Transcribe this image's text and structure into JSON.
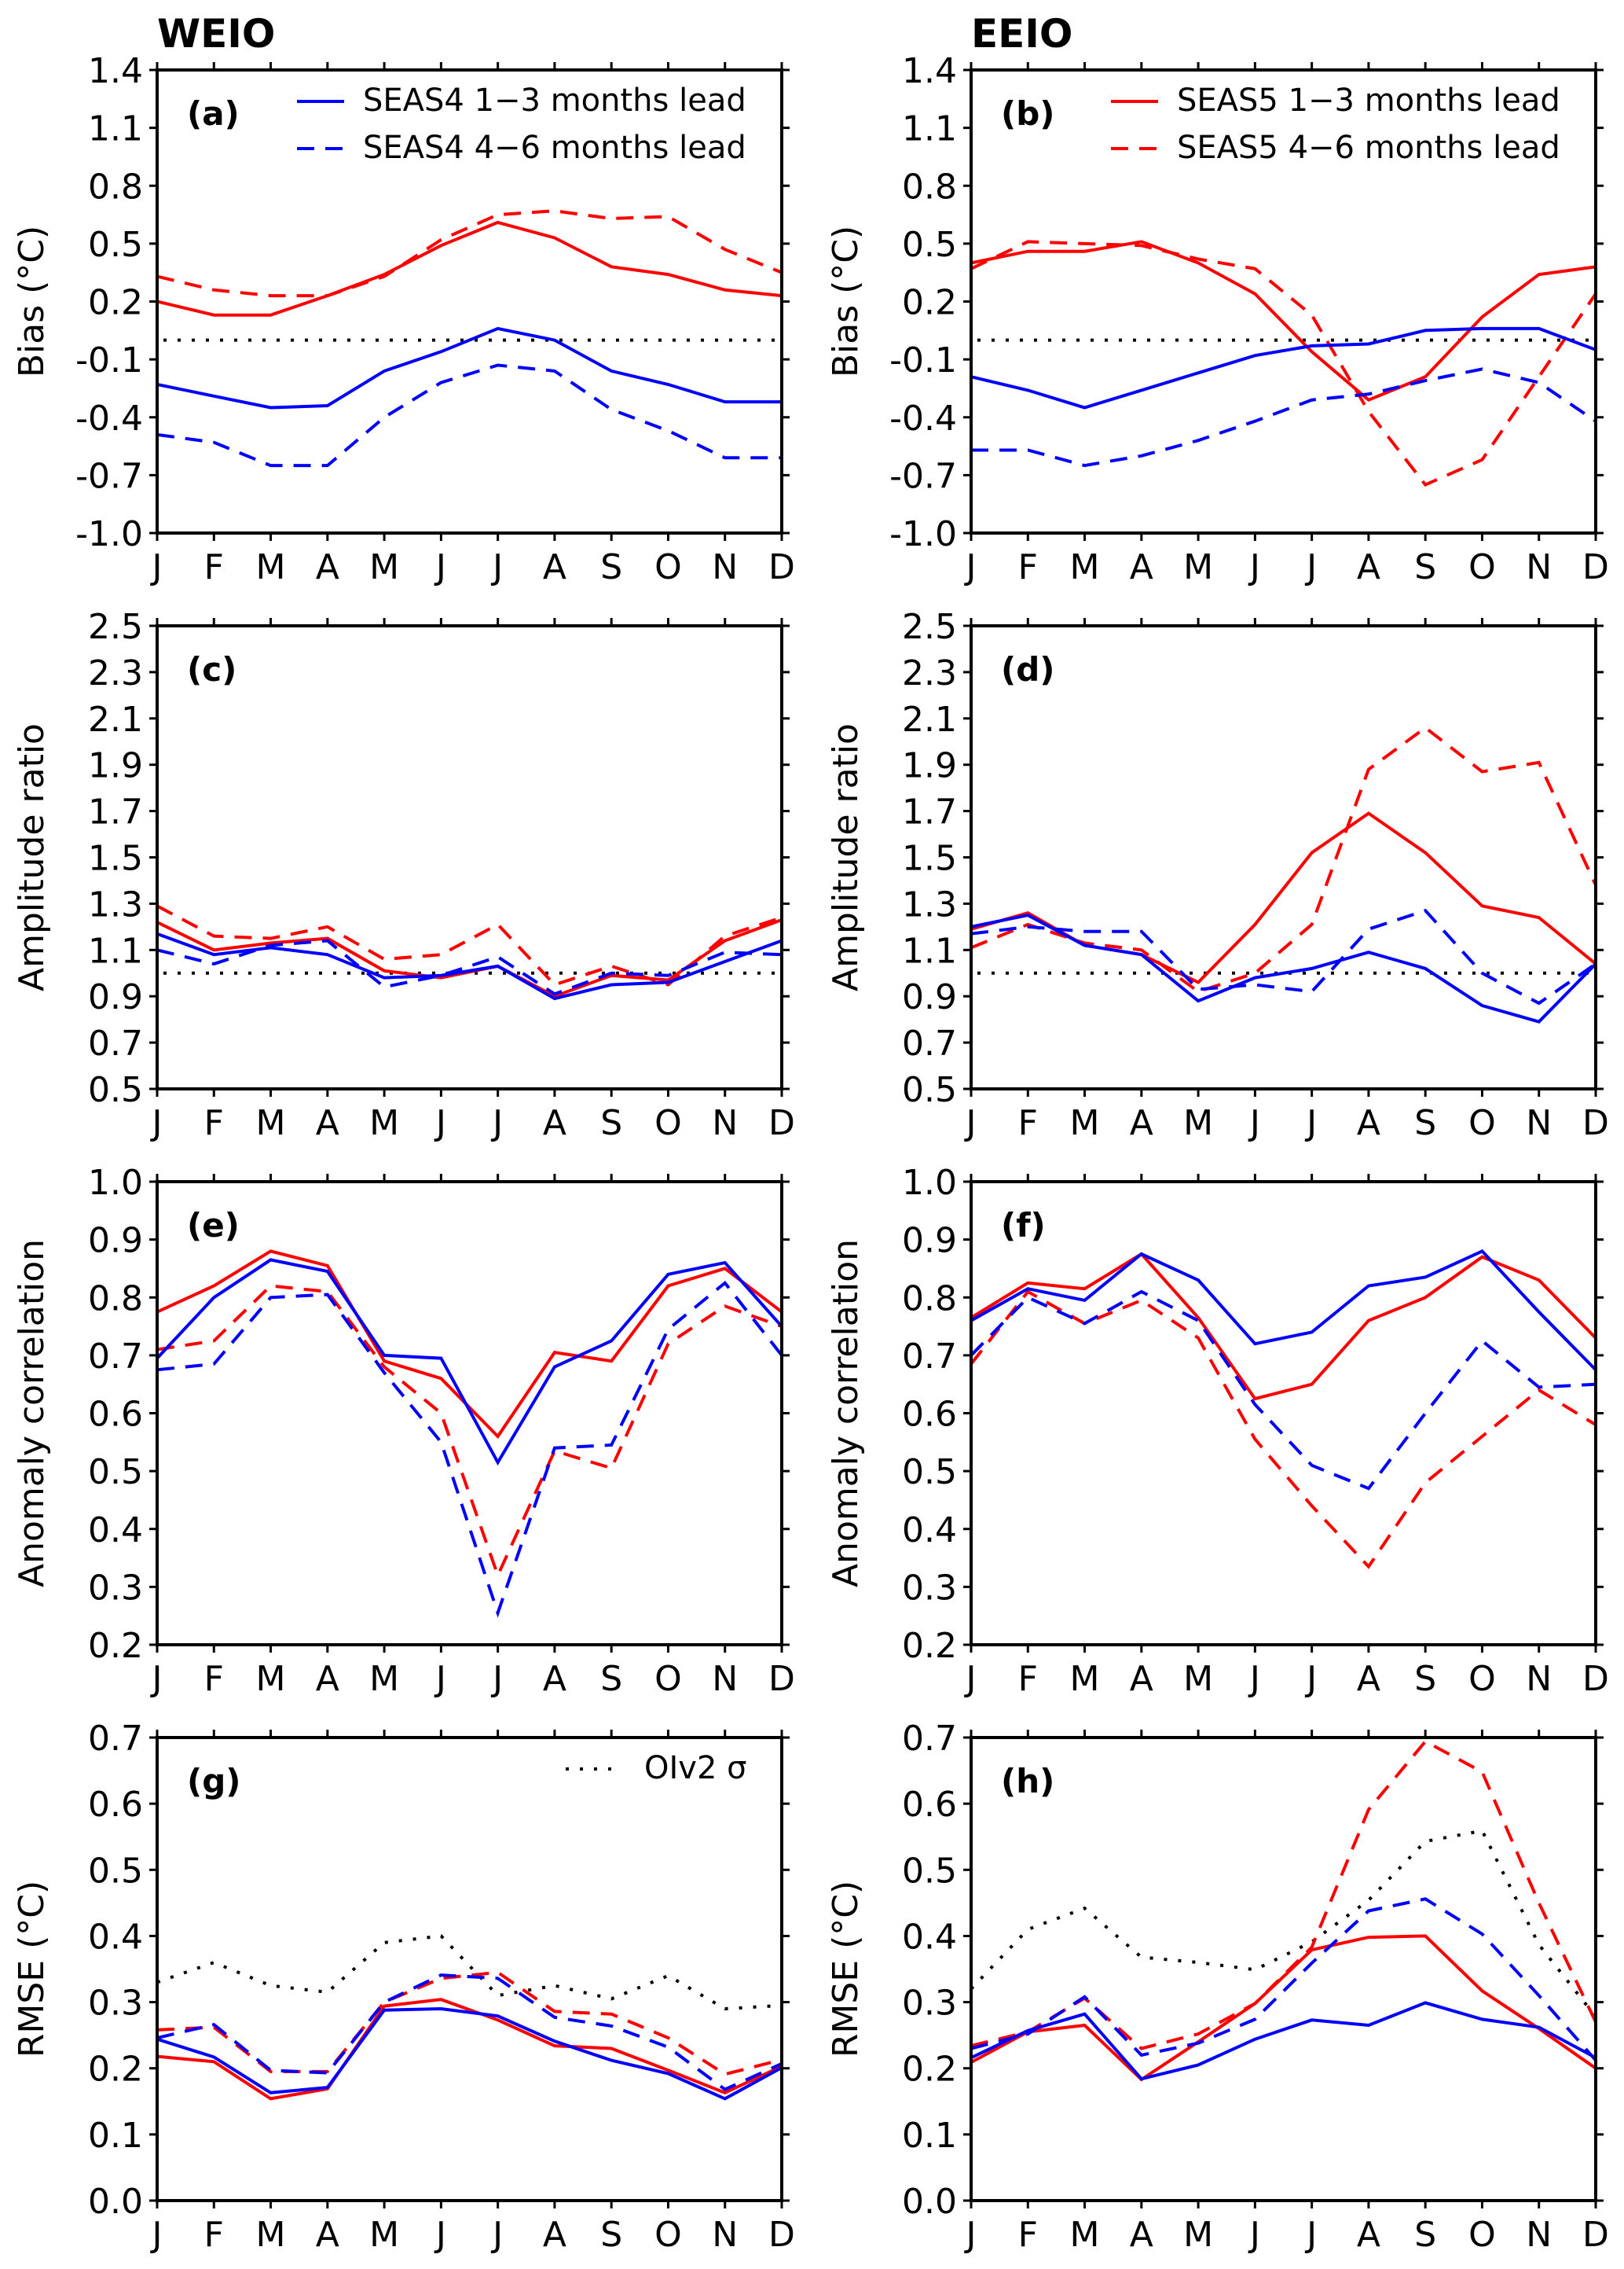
{
  "chart_data": {
    "type": "line",
    "columns": [
      "WEIO",
      "EEIO"
    ],
    "months": [
      "J",
      "F",
      "M",
      "A",
      "M",
      "J",
      "J",
      "A",
      "S",
      "O",
      "N",
      "D"
    ],
    "legend": {
      "seas4_solid": "SEAS4 1−3 months lead",
      "seas4_dashed": "SEAS4 4−6 months lead",
      "seas5_solid": "SEAS5 1−3 months lead",
      "seas5_dashed": "SEAS5 4−6 months lead",
      "obs_dotted": "OIv2 σ"
    },
    "colors": {
      "seas4": "#0000ff",
      "seas5": "#ff0000",
      "obs": "#000000"
    },
    "panels": [
      {
        "id": "a",
        "label": "(a)",
        "column": "WEIO",
        "ylabel": "Bias (°C)",
        "ylim": [
          -1.0,
          1.4
        ],
        "yticks": [
          "1.4",
          "1.1",
          "0.8",
          "0.5",
          "0.2",
          "-0.1",
          "-0.4",
          "-0.7",
          "-1.0"
        ],
        "reference_line": 0.0,
        "legend_entries": [
          "seas4_solid",
          "seas4_dashed"
        ],
        "series": [
          {
            "name": "SEAS5 1-3 months lead",
            "style": "solid",
            "color": "seas5",
            "values": [
              0.2,
              0.13,
              0.13,
              0.23,
              0.34,
              0.49,
              0.61,
              0.53,
              0.38,
              0.34,
              0.26,
              0.23
            ]
          },
          {
            "name": "SEAS5 4-6 months lead",
            "style": "dashed",
            "color": "seas5",
            "values": [
              0.33,
              0.26,
              0.23,
              0.23,
              0.33,
              0.52,
              0.65,
              0.67,
              0.63,
              0.64,
              0.47,
              0.35
            ]
          },
          {
            "name": "SEAS4 1-3 months lead",
            "style": "solid",
            "color": "seas4",
            "values": [
              -0.23,
              -0.29,
              -0.35,
              -0.34,
              -0.16,
              -0.06,
              0.06,
              0.0,
              -0.16,
              -0.23,
              -0.32,
              -0.32
            ]
          },
          {
            "name": "SEAS4 4-6 months lead",
            "style": "dashed",
            "color": "seas4",
            "values": [
              -0.49,
              -0.53,
              -0.65,
              -0.65,
              -0.4,
              -0.22,
              -0.13,
              -0.16,
              -0.36,
              -0.47,
              -0.61,
              -0.61
            ]
          }
        ]
      },
      {
        "id": "b",
        "label": "(b)",
        "column": "EEIO",
        "ylabel": "Bias (°C)",
        "ylim": [
          -1.0,
          1.4
        ],
        "yticks": [
          "1.4",
          "1.1",
          "0.8",
          "0.5",
          "0.2",
          "-0.1",
          "-0.4",
          "-0.7",
          "-1.0"
        ],
        "reference_line": 0.0,
        "legend_entries": [
          "seas5_solid",
          "seas5_dashed"
        ],
        "series": [
          {
            "name": "SEAS5 1-3 months lead",
            "style": "solid",
            "color": "seas5",
            "values": [
              0.4,
              0.46,
              0.46,
              0.51,
              0.4,
              0.24,
              -0.06,
              -0.31,
              -0.19,
              0.12,
              0.34,
              0.38
            ]
          },
          {
            "name": "SEAS5 4-6 months lead",
            "style": "dashed",
            "color": "seas5",
            "values": [
              0.37,
              0.51,
              0.5,
              0.49,
              0.42,
              0.37,
              0.13,
              -0.37,
              -0.75,
              -0.62,
              -0.19,
              0.24
            ]
          },
          {
            "name": "SEAS4 1-3 months lead",
            "style": "solid",
            "color": "seas4",
            "values": [
              -0.19,
              -0.26,
              -0.35,
              -0.26,
              -0.17,
              -0.08,
              -0.03,
              -0.02,
              0.05,
              0.06,
              0.06,
              -0.05
            ]
          },
          {
            "name": "SEAS4 4-6 months lead",
            "style": "dashed",
            "color": "seas4",
            "values": [
              -0.57,
              -0.57,
              -0.65,
              -0.6,
              -0.52,
              -0.42,
              -0.31,
              -0.28,
              -0.21,
              -0.15,
              -0.22,
              -0.42
            ]
          }
        ]
      },
      {
        "id": "c",
        "label": "(c)",
        "column": "WEIO",
        "ylabel": "Amplitude ratio",
        "ylim": [
          0.5,
          2.5
        ],
        "yticks": [
          "2.5",
          "2.3",
          "2.1",
          "1.9",
          "1.7",
          "1.5",
          "1.3",
          "1.1",
          "0.9",
          "0.7",
          "0.5"
        ],
        "reference_line": 1.0,
        "legend_entries": [],
        "series": [
          {
            "name": "SEAS5 1-3 months lead",
            "style": "solid",
            "color": "seas5",
            "values": [
              1.22,
              1.1,
              1.13,
              1.15,
              1.01,
              0.98,
              1.03,
              0.9,
              0.99,
              0.97,
              1.14,
              1.23
            ]
          },
          {
            "name": "SEAS5 4-6 months lead",
            "style": "dashed",
            "color": "seas5",
            "values": [
              1.29,
              1.16,
              1.15,
              1.2,
              1.06,
              1.08,
              1.21,
              0.95,
              1.03,
              0.95,
              1.16,
              1.24
            ]
          },
          {
            "name": "SEAS4 1-3 months lead",
            "style": "solid",
            "color": "seas4",
            "values": [
              1.17,
              1.08,
              1.11,
              1.08,
              0.98,
              0.99,
              1.03,
              0.89,
              0.95,
              0.96,
              1.05,
              1.14
            ]
          },
          {
            "name": "SEAS4 4-6 months lead",
            "style": "dashed",
            "color": "seas4",
            "values": [
              1.1,
              1.04,
              1.12,
              1.14,
              0.94,
              0.99,
              1.07,
              0.91,
              1.0,
              0.99,
              1.09,
              1.08
            ]
          }
        ]
      },
      {
        "id": "d",
        "label": "(d)",
        "column": "EEIO",
        "ylabel": "Amplitude ratio",
        "ylim": [
          0.5,
          2.5
        ],
        "yticks": [
          "2.5",
          "2.3",
          "2.1",
          "1.9",
          "1.7",
          "1.5",
          "1.3",
          "1.1",
          "0.9",
          "0.7",
          "0.5"
        ],
        "reference_line": 1.0,
        "legend_entries": [],
        "series": [
          {
            "name": "SEAS5 1-3 months lead",
            "style": "solid",
            "color": "seas5",
            "values": [
              1.19,
              1.26,
              1.12,
              1.08,
              0.96,
              1.21,
              1.52,
              1.69,
              1.52,
              1.29,
              1.24,
              1.04
            ]
          },
          {
            "name": "SEAS5 4-6 months lead",
            "style": "dashed",
            "color": "seas5",
            "values": [
              1.11,
              1.21,
              1.13,
              1.1,
              0.92,
              1.0,
              1.21,
              1.88,
              2.06,
              1.87,
              1.91,
              1.38
            ]
          },
          {
            "name": "SEAS4 1-3 months lead",
            "style": "solid",
            "color": "seas4",
            "values": [
              1.2,
              1.25,
              1.12,
              1.08,
              0.88,
              0.98,
              1.02,
              1.09,
              1.02,
              0.86,
              0.79,
              1.04
            ]
          },
          {
            "name": "SEAS4 4-6 months lead",
            "style": "dashed",
            "color": "seas4",
            "values": [
              1.17,
              1.2,
              1.18,
              1.18,
              0.93,
              0.95,
              0.92,
              1.19,
              1.27,
              1.0,
              0.87,
              1.04
            ]
          }
        ]
      },
      {
        "id": "e",
        "label": "(e)",
        "column": "WEIO",
        "ylabel": "Anomaly correlation",
        "ylim": [
          0.2,
          1.0
        ],
        "yticks": [
          "1.0",
          "0.9",
          "0.8",
          "0.7",
          "0.6",
          "0.5",
          "0.4",
          "0.3",
          "0.2"
        ],
        "reference_line": null,
        "legend_entries": [],
        "series": [
          {
            "name": "SEAS5 1-3 months lead",
            "style": "solid",
            "color": "seas5",
            "values": [
              0.775,
              0.82,
              0.88,
              0.855,
              0.69,
              0.66,
              0.56,
              0.705,
              0.69,
              0.82,
              0.85,
              0.775
            ]
          },
          {
            "name": "SEAS5 4-6 months lead",
            "style": "dashed",
            "color": "seas5",
            "values": [
              0.71,
              0.725,
              0.82,
              0.81,
              0.68,
              0.6,
              0.32,
              0.535,
              0.505,
              0.72,
              0.785,
              0.75
            ]
          },
          {
            "name": "SEAS4 1-3 months lead",
            "style": "solid",
            "color": "seas4",
            "values": [
              0.695,
              0.8,
              0.865,
              0.845,
              0.7,
              0.695,
              0.515,
              0.68,
              0.725,
              0.84,
              0.86,
              0.75
            ]
          },
          {
            "name": "SEAS4 4-6 months lead",
            "style": "dashed",
            "color": "seas4",
            "values": [
              0.675,
              0.685,
              0.8,
              0.805,
              0.67,
              0.55,
              0.255,
              0.54,
              0.545,
              0.745,
              0.825,
              0.7
            ]
          }
        ]
      },
      {
        "id": "f",
        "label": "(f)",
        "column": "EEIO",
        "ylabel": "Anomaly correlation",
        "ylim": [
          0.2,
          1.0
        ],
        "yticks": [
          "1.0",
          "0.9",
          "0.8",
          "0.7",
          "0.6",
          "0.5",
          "0.4",
          "0.3",
          "0.2"
        ],
        "reference_line": null,
        "legend_entries": [],
        "series": [
          {
            "name": "SEAS5 1-3 months lead",
            "style": "solid",
            "color": "seas5",
            "values": [
              0.765,
              0.825,
              0.815,
              0.875,
              0.765,
              0.625,
              0.65,
              0.76,
              0.8,
              0.87,
              0.83,
              0.73
            ]
          },
          {
            "name": "SEAS5 4-6 months lead",
            "style": "dashed",
            "color": "seas5",
            "values": [
              0.685,
              0.81,
              0.755,
              0.795,
              0.73,
              0.555,
              0.44,
              0.335,
              0.48,
              0.56,
              0.64,
              0.58
            ]
          },
          {
            "name": "SEAS4 1-3 months lead",
            "style": "solid",
            "color": "seas4",
            "values": [
              0.76,
              0.815,
              0.795,
              0.875,
              0.83,
              0.72,
              0.74,
              0.82,
              0.835,
              0.88,
              0.775,
              0.675
            ]
          },
          {
            "name": "SEAS4 4-6 months lead",
            "style": "dashed",
            "color": "seas4",
            "values": [
              0.7,
              0.8,
              0.755,
              0.81,
              0.76,
              0.615,
              0.51,
              0.47,
              0.6,
              0.725,
              0.645,
              0.65
            ]
          }
        ]
      },
      {
        "id": "g",
        "label": "(g)",
        "column": "WEIO",
        "ylabel": "RMSE (°C)",
        "ylim": [
          0.0,
          0.7
        ],
        "yticks": [
          "0.7",
          "0.6",
          "0.5",
          "0.4",
          "0.3",
          "0.2",
          "0.1",
          "0.0"
        ],
        "reference_line": null,
        "legend_entries": [
          "obs_dotted"
        ],
        "series": [
          {
            "name": "OIv2 σ",
            "style": "dotted",
            "color": "obs",
            "values": [
              0.33,
              0.36,
              0.325,
              0.315,
              0.39,
              0.4,
              0.31,
              0.325,
              0.305,
              0.34,
              0.29,
              0.295
            ]
          },
          {
            "name": "SEAS5 1-3 months lead",
            "style": "solid",
            "color": "seas5",
            "values": [
              0.218,
              0.21,
              0.154,
              0.169,
              0.294,
              0.304,
              0.273,
              0.234,
              0.23,
              0.197,
              0.163,
              0.203
            ]
          },
          {
            "name": "SEAS5 4-6 months lead",
            "style": "dashed",
            "color": "seas5",
            "values": [
              0.258,
              0.262,
              0.195,
              0.195,
              0.3,
              0.336,
              0.345,
              0.286,
              0.282,
              0.246,
              0.191,
              0.213
            ]
          },
          {
            "name": "SEAS4 1-3 months lead",
            "style": "solid",
            "color": "seas4",
            "values": [
              0.244,
              0.217,
              0.163,
              0.171,
              0.288,
              0.29,
              0.279,
              0.241,
              0.212,
              0.192,
              0.154,
              0.201
            ]
          },
          {
            "name": "SEAS4 4-6 months lead",
            "style": "dashed",
            "color": "seas4",
            "values": [
              0.246,
              0.266,
              0.197,
              0.193,
              0.3,
              0.341,
              0.336,
              0.277,
              0.264,
              0.232,
              0.168,
              0.207
            ]
          }
        ]
      },
      {
        "id": "h",
        "label": "(h)",
        "column": "EEIO",
        "ylabel": "RMSE (°C)",
        "ylim": [
          0.0,
          0.7
        ],
        "yticks": [
          "0.7",
          "0.6",
          "0.5",
          "0.4",
          "0.3",
          "0.2",
          "0.1",
          "0.0"
        ],
        "reference_line": null,
        "legend_entries": [],
        "series": [
          {
            "name": "OIv2 σ",
            "style": "dotted",
            "color": "obs",
            "values": [
              0.32,
              0.41,
              0.442,
              0.368,
              0.36,
              0.349,
              0.391,
              0.454,
              0.543,
              0.559,
              0.387,
              0.278
            ]
          },
          {
            "name": "SEAS5 1-3 months lead",
            "style": "solid",
            "color": "seas5",
            "values": [
              0.209,
              0.255,
              0.265,
              0.183,
              0.24,
              0.298,
              0.379,
              0.398,
              0.4,
              0.317,
              0.26,
              0.2
            ]
          },
          {
            "name": "SEAS5 4-6 months lead",
            "style": "dashed",
            "color": "seas5",
            "values": [
              0.234,
              0.255,
              0.306,
              0.23,
              0.252,
              0.298,
              0.383,
              0.591,
              0.694,
              0.648,
              0.45,
              0.27
            ]
          },
          {
            "name": "SEAS4 1-3 months lead",
            "style": "solid",
            "color": "seas4",
            "values": [
              0.216,
              0.257,
              0.282,
              0.184,
              0.205,
              0.244,
              0.273,
              0.265,
              0.299,
              0.274,
              0.262,
              0.216
            ]
          },
          {
            "name": "SEAS4 4-6 months lead",
            "style": "dashed",
            "color": "seas4",
            "values": [
              0.23,
              0.252,
              0.308,
              0.22,
              0.238,
              0.274,
              0.359,
              0.438,
              0.456,
              0.403,
              0.31,
              0.212
            ]
          }
        ]
      }
    ]
  }
}
